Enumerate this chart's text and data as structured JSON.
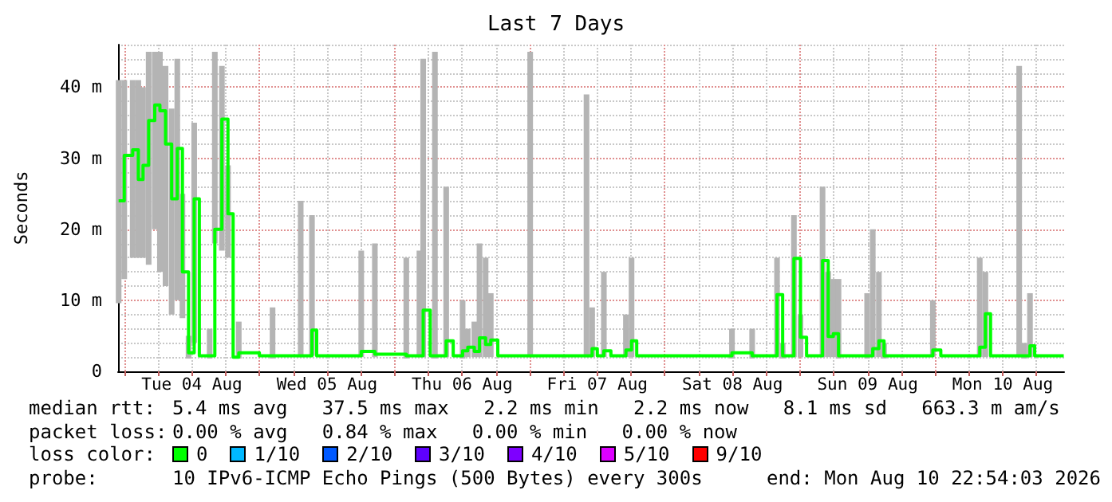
{
  "chart_data": {
    "type": "step",
    "title": "Last 7 Days",
    "ylabel": "Seconds",
    "xlim": [
      "2026-08-03T22:54",
      "2026-08-10T22:54"
    ],
    "xticks": [
      {
        "value": "2026-08-04T00:00",
        "label": null
      },
      {
        "value": "2026-08-04T06:00",
        "label": null
      },
      {
        "value": "2026-08-04T12:00",
        "label": "Tue 04 Aug"
      },
      {
        "value": "2026-08-04T18:00",
        "label": null
      },
      {
        "value": "2026-08-05T00:00",
        "label": null
      },
      {
        "value": "2026-08-05T06:00",
        "label": null
      },
      {
        "value": "2026-08-05T12:00",
        "label": "Wed 05 Aug"
      },
      {
        "value": "2026-08-05T18:00",
        "label": null
      },
      {
        "value": "2026-08-06T00:00",
        "label": null
      },
      {
        "value": "2026-08-06T06:00",
        "label": null
      },
      {
        "value": "2026-08-06T12:00",
        "label": "Thu 06 Aug"
      },
      {
        "value": "2026-08-06T18:00",
        "label": null
      },
      {
        "value": "2026-08-07T00:00",
        "label": null
      },
      {
        "value": "2026-08-07T06:00",
        "label": null
      },
      {
        "value": "2026-08-07T12:00",
        "label": "Fri 07 Aug"
      },
      {
        "value": "2026-08-07T18:00",
        "label": null
      },
      {
        "value": "2026-08-08T00:00",
        "label": null
      },
      {
        "value": "2026-08-08T06:00",
        "label": null
      },
      {
        "value": "2026-08-08T12:00",
        "label": "Sat 08 Aug"
      },
      {
        "value": "2026-08-08T18:00",
        "label": null
      },
      {
        "value": "2026-08-09T00:00",
        "label": null
      },
      {
        "value": "2026-08-09T06:00",
        "label": null
      },
      {
        "value": "2026-08-09T12:00",
        "label": "Sun 09 Aug"
      },
      {
        "value": "2026-08-09T18:00",
        "label": null
      },
      {
        "value": "2026-08-10T00:00",
        "label": null
      },
      {
        "value": "2026-08-10T06:00",
        "label": null
      },
      {
        "value": "2026-08-10T12:00",
        "label": "Mon 10 Aug"
      },
      {
        "value": "2026-08-10T18:00",
        "label": null
      }
    ],
    "ylim": [
      0,
      46
    ],
    "yticks": [
      0,
      {
        "value": 2,
        "label": null
      },
      {
        "value": 4,
        "label": null
      },
      {
        "value": 6,
        "label": null
      },
      {
        "value": 8,
        "label": null
      },
      {
        "value": 10,
        "label": "10 m"
      },
      {
        "value": 12,
        "label": null
      },
      {
        "value": 14,
        "label": null
      },
      {
        "value": 16,
        "label": null
      },
      {
        "value": 18,
        "label": null
      },
      {
        "value": 20,
        "label": "20 m"
      },
      {
        "value": 22,
        "label": null
      },
      {
        "value": 24,
        "label": null
      },
      {
        "value": 26,
        "label": null
      },
      {
        "value": 28,
        "label": null
      },
      {
        "value": 30,
        "label": "30 m"
      },
      {
        "value": 32,
        "label": null
      },
      {
        "value": 34,
        "label": null
      },
      {
        "value": 36,
        "label": null
      },
      {
        "value": 38,
        "label": null
      },
      {
        "value": 40,
        "label": "40 m"
      },
      {
        "value": 42,
        "label": null
      },
      {
        "value": 44,
        "label": null
      },
      {
        "value": 46,
        "label": null
      }
    ],
    "grid": true,
    "series": [
      {
        "color": "#00ff00",
        "x": [
          "2026-08-03T23:00",
          "2026-08-04T00:00",
          "2026-08-04T01:30",
          "2026-08-04T02:30",
          "2026-08-04T03:20",
          "2026-08-04T04:20",
          "2026-08-04T05:25",
          "2026-08-04T06:20",
          "2026-08-04T07:20",
          "2026-08-04T08:25",
          "2026-08-04T09:25",
          "2026-08-04T10:20",
          "2026-08-04T11:25",
          "2026-08-04T12:25",
          "2026-08-04T13:20",
          "2026-08-04T15:10",
          "2026-08-04T16:05",
          "2026-08-04T17:20",
          "2026-08-04T18:25",
          "2026-08-04T19:20",
          "2026-08-04T20:20",
          "2026-08-05T00:00",
          "2026-08-05T02:20",
          "2026-08-05T07:20",
          "2026-08-05T09:20",
          "2026-08-05T10:10",
          "2026-08-05T14:00",
          "2026-08-05T18:05",
          "2026-08-05T20:30",
          "2026-08-06T02:05",
          "2026-08-06T04:25",
          "2026-08-06T05:05",
          "2026-08-06T06:20",
          "2026-08-06T07:10",
          "2026-08-06T09:10",
          "2026-08-06T10:25",
          "2026-08-06T12:05",
          "2026-08-06T13:00",
          "2026-08-06T14:10",
          "2026-08-06T15:05",
          "2026-08-06T16:10",
          "2026-08-06T17:05",
          "2026-08-06T18:20",
          "2026-08-07T00:05",
          "2026-08-07T06:55",
          "2026-08-07T10:05",
          "2026-08-07T11:05",
          "2026-08-07T12:00",
          "2026-08-07T13:10",
          "2026-08-07T14:25",
          "2026-08-07T17:05",
          "2026-08-07T18:05",
          "2026-08-07T19:00",
          "2026-08-08T02:25",
          "2026-08-08T08:00",
          "2026-08-08T11:55",
          "2026-08-08T15:30",
          "2026-08-08T19:10",
          "2026-08-08T19:55",
          "2026-08-08T20:55",
          "2026-08-08T22:10",
          "2026-08-08T22:55",
          "2026-08-09T00:05",
          "2026-08-09T01:10",
          "2026-08-09T03:05",
          "2026-08-09T04:00",
          "2026-08-09T05:00",
          "2026-08-09T05:55",
          "2026-08-09T06:50",
          "2026-08-09T11:55",
          "2026-08-09T12:55",
          "2026-08-09T14:00",
          "2026-08-09T14:55",
          "2026-08-09T21:10",
          "2026-08-09T22:10",
          "2026-08-09T23:35",
          "2026-08-10T01:00",
          "2026-08-10T06:30",
          "2026-08-10T07:55",
          "2026-08-10T08:55",
          "2026-08-10T09:50",
          "2026-08-10T14:55",
          "2026-08-10T15:50",
          "2026-08-10T16:50",
          "2026-08-10T17:40",
          "2026-08-10T21:00",
          "2026-08-10T22:50"
        ],
        "values": [
          24,
          30.4,
          31.2,
          27,
          29,
          35.3,
          37.5,
          36.7,
          32,
          24.3,
          31.4,
          14,
          2.6,
          24.3,
          2.2,
          2.2,
          20,
          35.5,
          22.2,
          2,
          2.6,
          2.2,
          2.2,
          2.2,
          5.8,
          2.2,
          2.2,
          2.8,
          2.4,
          2.2,
          2.2,
          8.6,
          2.2,
          2.2,
          4.3,
          2.2,
          2.9,
          3.4,
          2.8,
          4.7,
          3.8,
          4.4,
          2.2,
          2.2,
          2.2,
          2.2,
          3.2,
          2.2,
          2.9,
          2.2,
          3,
          4.3,
          2.2,
          2.2,
          2.2,
          2.6,
          2.2,
          2.2,
          10.8,
          2.2,
          2.2,
          15.9,
          4.8,
          2.2,
          2.2,
          15.6,
          4.9,
          5.3,
          2.2,
          2.2,
          3.2,
          4.3,
          2.2,
          2.2,
          2.2,
          3,
          2.2,
          2.2,
          3.4,
          8.1,
          2.2,
          2.2,
          2.2,
          3.6,
          2.2,
          2.2,
          2.2
        ],
        "lower": [
          9.6,
          13,
          16,
          16,
          16,
          15,
          20,
          14,
          12,
          8,
          10,
          7.5,
          1.8,
          4,
          null,
          1.8,
          18,
          17,
          16,
          null,
          1.8,
          null,
          1.8,
          2,
          2.2,
          null,
          null,
          2,
          2,
          1.8,
          2,
          2,
          null,
          1.8,
          2,
          null,
          1.8,
          2,
          2,
          2,
          2,
          2,
          null,
          2,
          null,
          2,
          2,
          null,
          2,
          null,
          2,
          2,
          null,
          null,
          null,
          1.8,
          1.8,
          null,
          2,
          1.8,
          null,
          2,
          2,
          null,
          null,
          2,
          2,
          2,
          1.8,
          1.8,
          2,
          2,
          1.8,
          null,
          null,
          2,
          null,
          null,
          2,
          2,
          null,
          2,
          1.8,
          2,
          null,
          null,
          null
        ],
        "upper": [
          41,
          41,
          41,
          41,
          40,
          45,
          45,
          45,
          43,
          37,
          44,
          25,
          5,
          35,
          null,
          6,
          45,
          43,
          29,
          null,
          7,
          null,
          9,
          24,
          22,
          null,
          null,
          17,
          18,
          16,
          17,
          44,
          null,
          45,
          26,
          null,
          10,
          6,
          7,
          18,
          16,
          11,
          null,
          45,
          null,
          39,
          9,
          null,
          14,
          null,
          8,
          16,
          null,
          null,
          null,
          6,
          6,
          null,
          16,
          4,
          null,
          22,
          8,
          null,
          null,
          26,
          14,
          13,
          13,
          11,
          20,
          14,
          4,
          null,
          null,
          10,
          null,
          null,
          16,
          14,
          null,
          43,
          4,
          11,
          null,
          null,
          null
        ]
      }
    ],
    "annotations": [
      "median rtt:",
      "5.4 ms avg   37.5 ms max   2.2 ms min   2.2 ms now   8.1 ms sd   663.3 m am/s",
      "packet loss:",
      "0.00 % avg   0.84 % max   0.00 % min   0.00 % now",
      "loss color:",
      "0",
      "1/10",
      "2/10",
      "3/10",
      "4/10",
      "5/10",
      "9/10",
      "probe:",
      "10 IPv6-ICMP Echo Pings (500 Bytes) every 300s",
      "end: Mon Aug 10 22:54:03 2026"
    ]
  }
}
